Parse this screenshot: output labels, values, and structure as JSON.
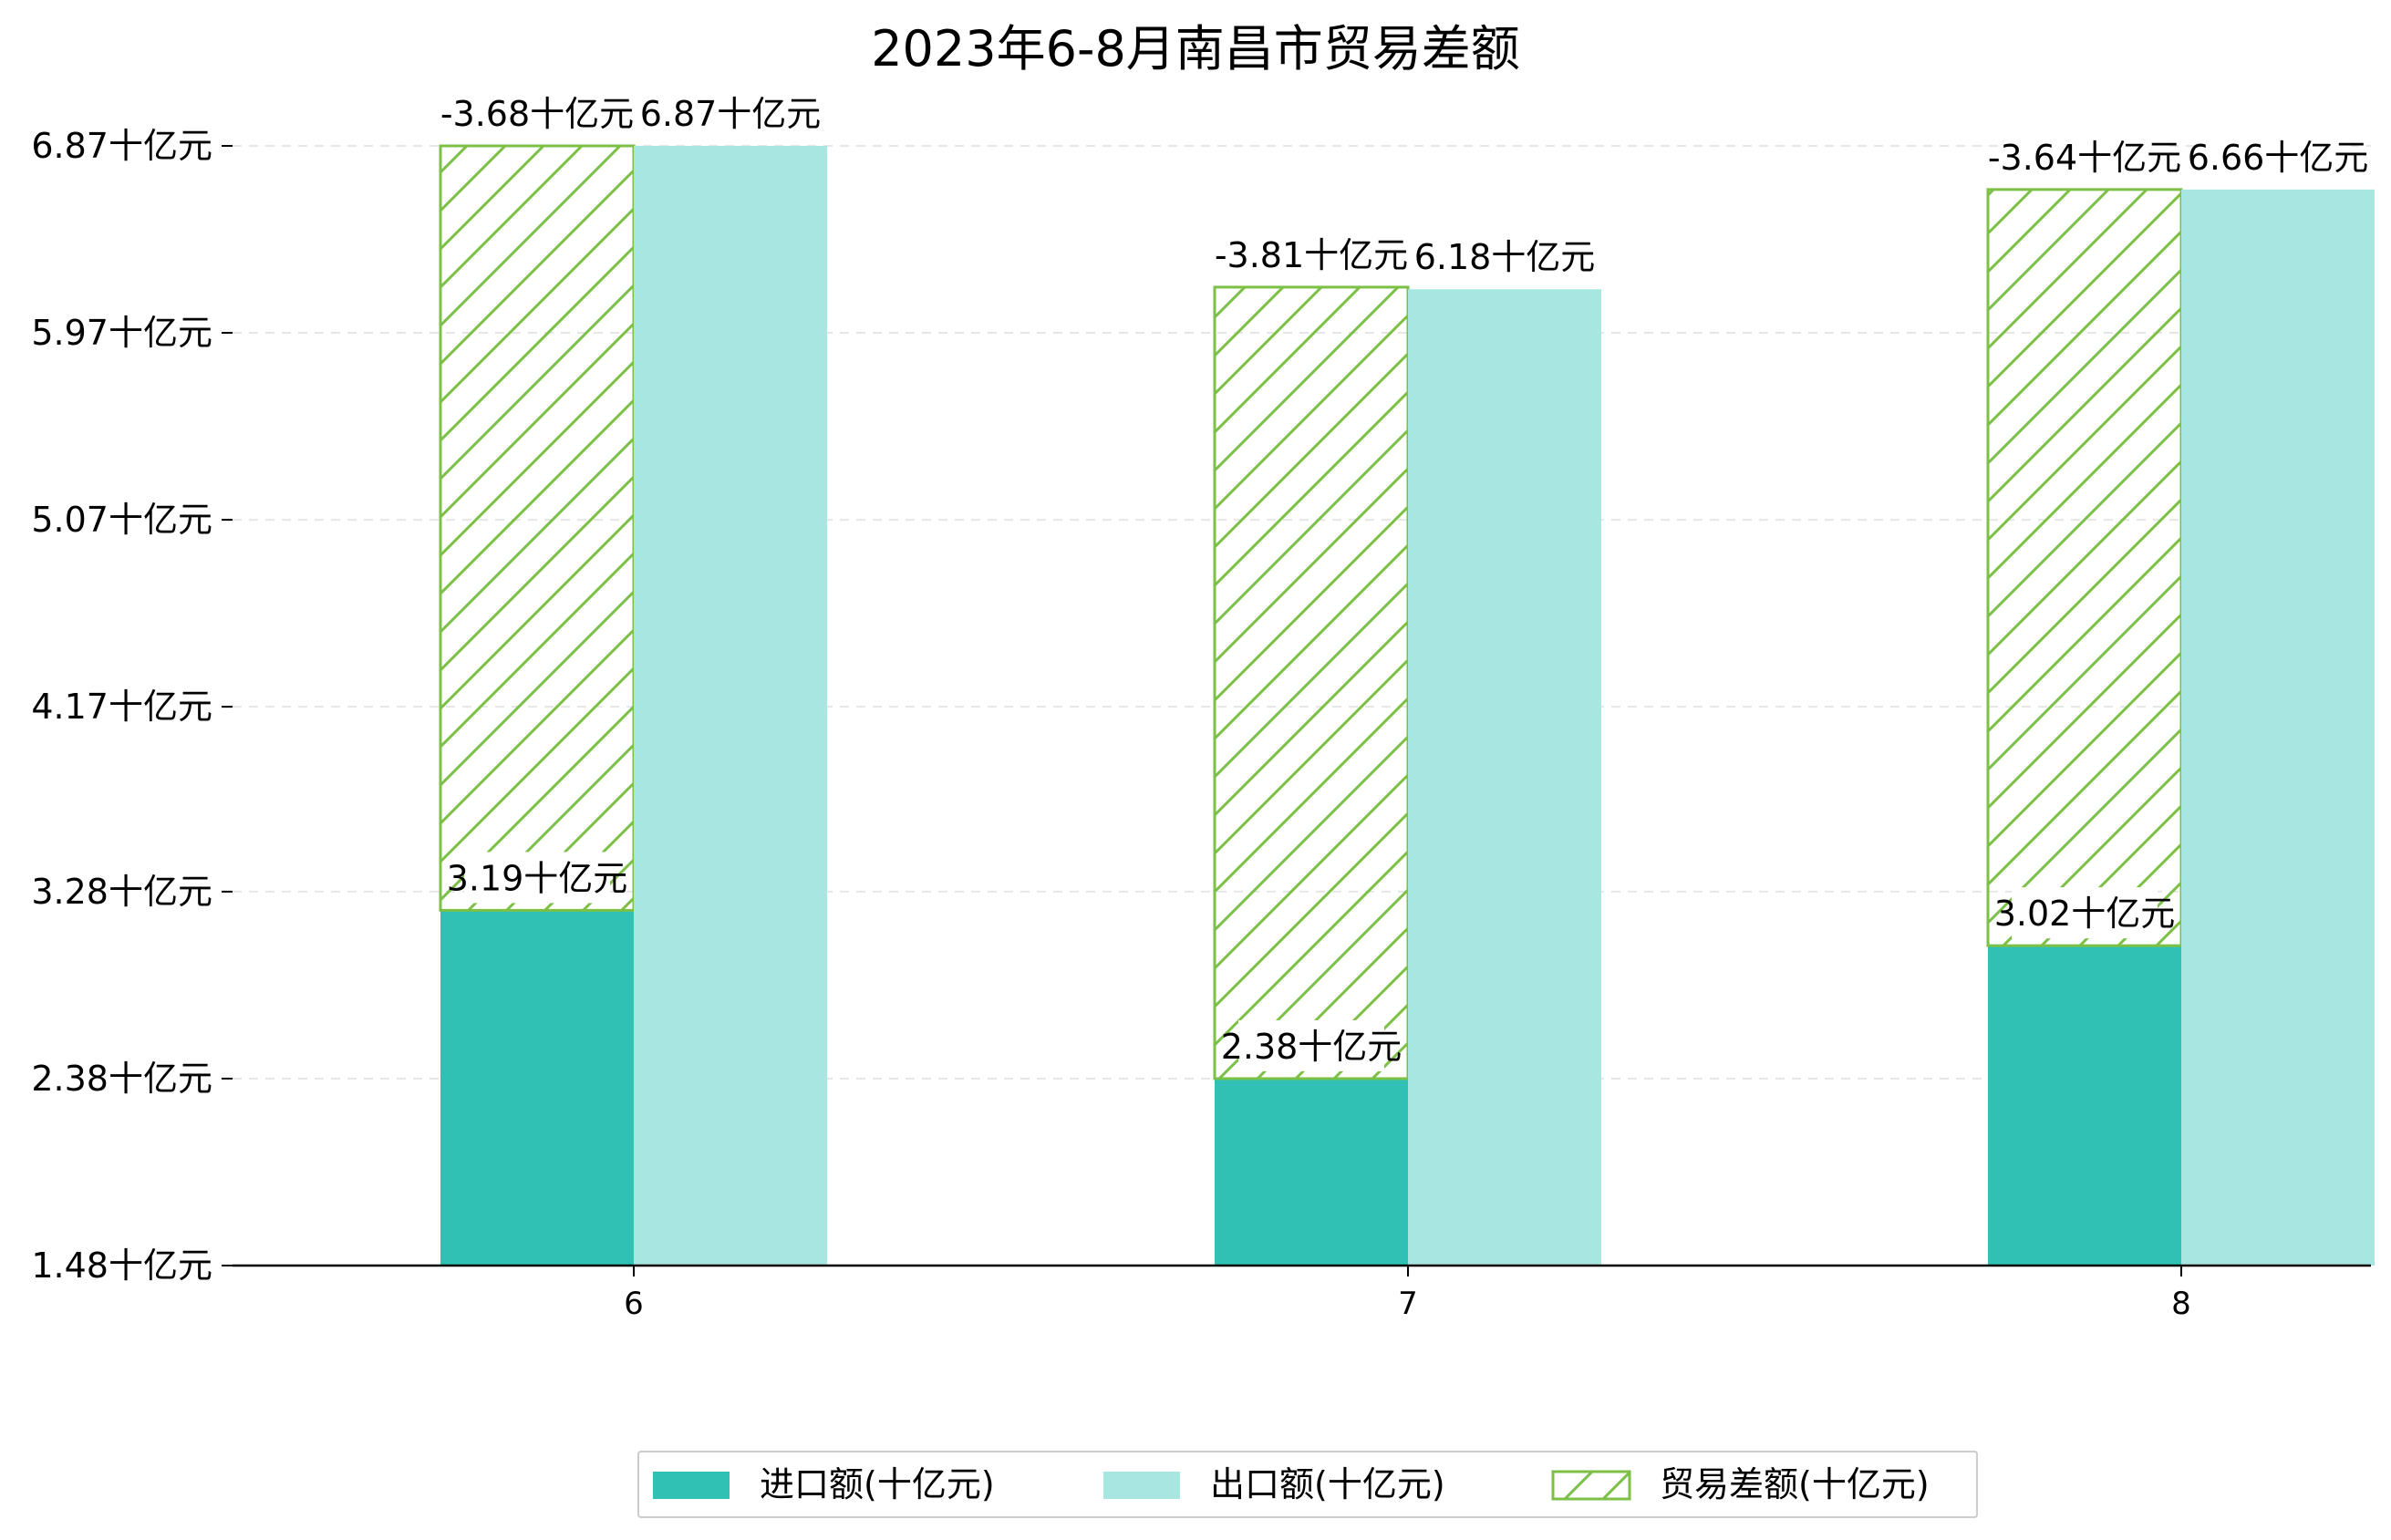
{
  "chart_data": {
    "type": "bar",
    "title": "2023年6-8月南昌市贸易差额",
    "xlabel": "",
    "ylabel": "",
    "categories": [
      "6",
      "7",
      "8"
    ],
    "ylim": [
      1.48,
      6.87
    ],
    "yticks": [
      1.48,
      2.38,
      3.28,
      4.17,
      5.07,
      5.97,
      6.87
    ],
    "ytick_labels": [
      "1.48十亿元",
      "2.38十亿元",
      "3.28十亿元",
      "4.17十亿元",
      "5.07十亿元",
      "5.97十亿元",
      "6.87十亿元"
    ],
    "grid": "horizontal dashed",
    "legend_position": "bottom",
    "series": [
      {
        "name": "进口额(十亿元)",
        "color": "#30c0b4",
        "style": "solid",
        "values": [
          3.19,
          2.38,
          3.02
        ],
        "labels": [
          "3.19十亿元",
          "2.38十亿元",
          "3.02十亿元"
        ]
      },
      {
        "name": "出口额(十亿元)",
        "color": "#a8e7e1",
        "style": "solid",
        "values": [
          6.87,
          6.18,
          6.66
        ],
        "labels": [
          "6.87十亿元",
          "6.18十亿元",
          "6.66十亿元"
        ]
      },
      {
        "name": "贸易差额(十亿元)",
        "color": "#7cc046",
        "style": "hatched",
        "values": [
          -3.68,
          -3.81,
          -3.64
        ],
        "labels": [
          "-3.68十亿元",
          "-3.81十亿元",
          "-3.64十亿元"
        ]
      }
    ]
  }
}
